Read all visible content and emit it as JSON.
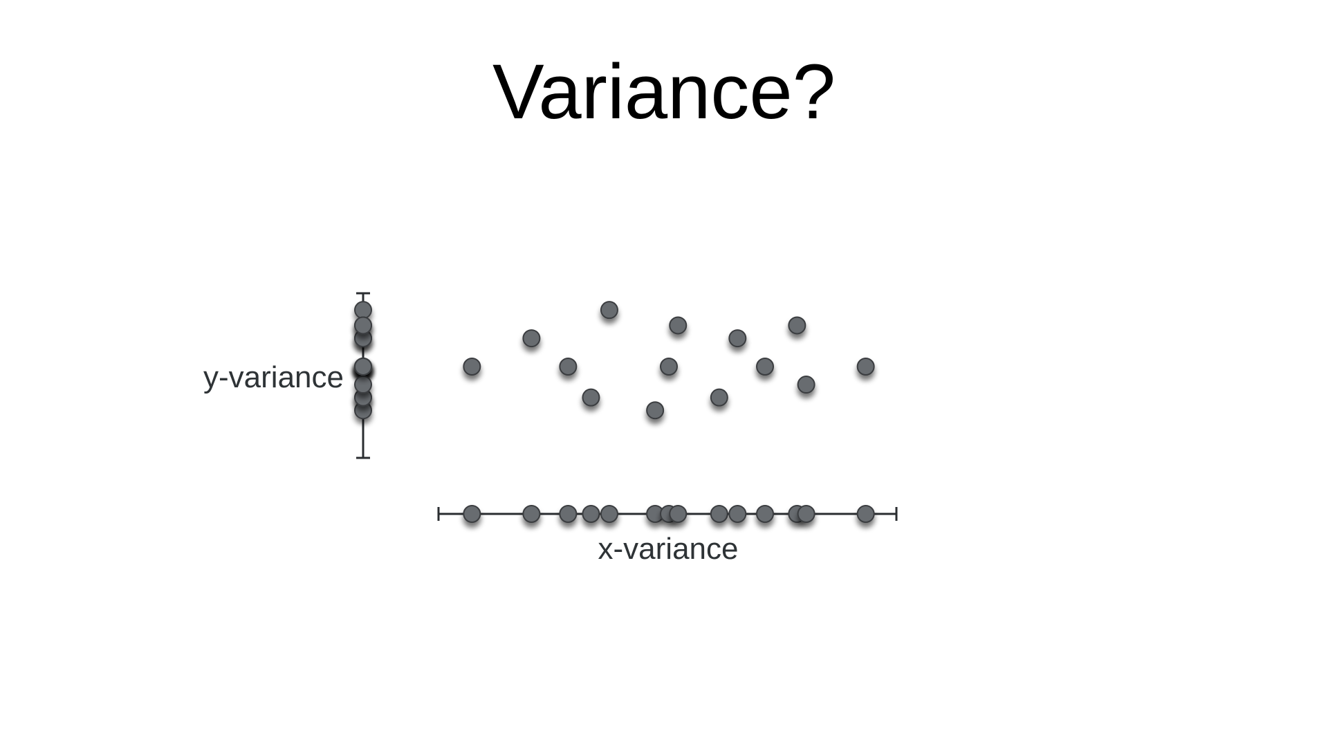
{
  "title": "Variance?",
  "labels": {
    "y_axis": "y-variance",
    "x_axis": "x-variance"
  },
  "colors": {
    "point_fill": "#686c70",
    "point_stroke": "#3a3d40",
    "line": "#2a2d30",
    "label": "#2e3336"
  },
  "chart_data": {
    "type": "scatter",
    "points": [
      {
        "x": 0.07,
        "y": 0.5
      },
      {
        "x": 0.2,
        "y": 0.72
      },
      {
        "x": 0.28,
        "y": 0.5
      },
      {
        "x": 0.33,
        "y": 0.26
      },
      {
        "x": 0.37,
        "y": 0.94
      },
      {
        "x": 0.47,
        "y": 0.16
      },
      {
        "x": 0.5,
        "y": 0.5
      },
      {
        "x": 0.52,
        "y": 0.82
      },
      {
        "x": 0.61,
        "y": 0.26
      },
      {
        "x": 0.65,
        "y": 0.72
      },
      {
        "x": 0.71,
        "y": 0.5
      },
      {
        "x": 0.78,
        "y": 0.82
      },
      {
        "x": 0.8,
        "y": 0.36
      },
      {
        "x": 0.93,
        "y": 0.5
      }
    ],
    "x_projection": true,
    "y_projection": true
  }
}
